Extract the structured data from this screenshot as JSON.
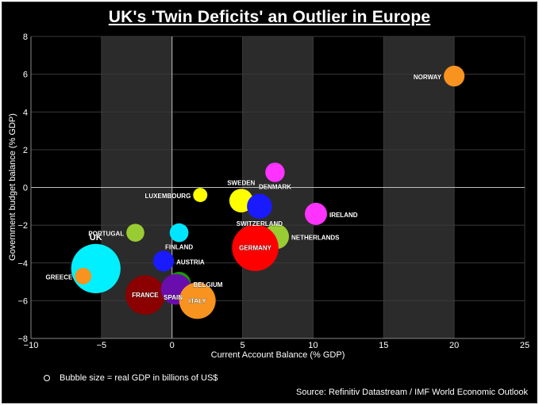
{
  "chart_data": {
    "type": "scatter",
    "title": "UK's 'Twin Deficits' an Outlier in Europe",
    "xlabel": "Current Account Balance (% GDP)",
    "ylabel": "Government budget balance (% GDP)",
    "xlim": [
      -10,
      25
    ],
    "ylim": [
      -8,
      8
    ],
    "xticks": [
      -10,
      -5,
      0,
      5,
      10,
      15,
      20,
      25
    ],
    "yticks": [
      -8,
      -6,
      -4,
      -2,
      0,
      2,
      4,
      6,
      8
    ],
    "note": "Bubble size = real GDP in billions of US$",
    "source": "Source: Refinitiv Datastream / IMF World Economic Outlook",
    "points": [
      {
        "name": "NORWAY",
        "x": 20.0,
        "y": 5.9,
        "size": 0.45,
        "color": "#f7931e"
      },
      {
        "name": "DENMARK",
        "x": 7.3,
        "y": 0.8,
        "size": 0.4,
        "color": "#ff33ff"
      },
      {
        "name": "LUXEMBOURG",
        "x": 2.0,
        "y": -0.4,
        "size": 0.22,
        "color": "#ffff00"
      },
      {
        "name": "SWEDEN",
        "x": 4.9,
        "y": -0.7,
        "size": 0.55,
        "color": "#ffff00"
      },
      {
        "name": "SWITZERLAND",
        "x": 6.2,
        "y": -1.0,
        "size": 0.6,
        "color": "#1a1aff"
      },
      {
        "name": "IRELAND",
        "x": 10.2,
        "y": -1.4,
        "size": 0.5,
        "color": "#ff33ff"
      },
      {
        "name": "PORTUGAL",
        "x": -2.6,
        "y": -2.4,
        "size": 0.35,
        "color": "#99cc33"
      },
      {
        "name": "FINLAND",
        "x": 0.5,
        "y": -2.4,
        "size": 0.38,
        "color": "#00e5ff"
      },
      {
        "name": "NETHERLANDS",
        "x": 7.4,
        "y": -2.6,
        "size": 0.6,
        "color": "#99cc33"
      },
      {
        "name": "GERMANY",
        "x": 5.9,
        "y": -3.2,
        "size": 1.35,
        "color": "#ff0000"
      },
      {
        "name": "AUSTRIA",
        "x": -0.6,
        "y": -3.9,
        "size": 0.45,
        "color": "#1a1aff"
      },
      {
        "name": "UK",
        "x": -5.4,
        "y": -4.3,
        "size": 1.45,
        "color": "#00f0ff"
      },
      {
        "name": "GREECE",
        "x": -6.3,
        "y": -4.7,
        "size": 0.3,
        "color": "#f7931e"
      },
      {
        "name": "BELGIUM",
        "x": 0.5,
        "y": -5.1,
        "size": 0.55,
        "color": "#1a9900"
      },
      {
        "name": "FRANCE",
        "x": -1.9,
        "y": -5.7,
        "size": 1.1,
        "color": "#8b0000"
      },
      {
        "name": "SPAIN",
        "x": 0.3,
        "y": -5.4,
        "size": 0.8,
        "color": "#6a0dad"
      },
      {
        "name": "ITALY",
        "x": 1.8,
        "y": -6.0,
        "size": 1.0,
        "color": "#f7931e"
      }
    ]
  }
}
